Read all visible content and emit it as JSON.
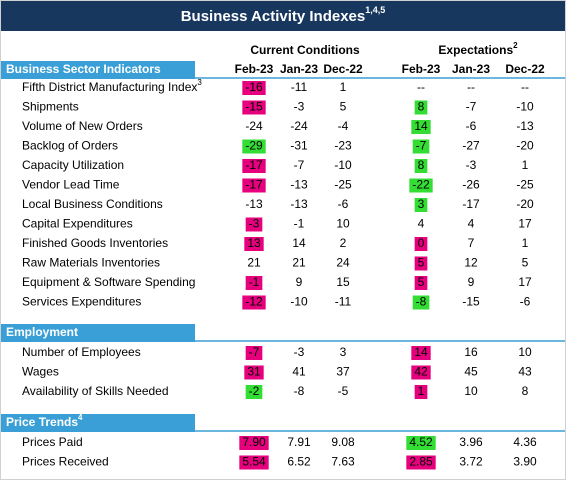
{
  "header": {
    "title": "Business Activity Indexes",
    "title_sup": "1,4,5"
  },
  "columns": {
    "current": "Current Conditions",
    "expectations": "Expectations",
    "expectations_sup": "2",
    "months": [
      "Feb-23",
      "Jan-23",
      "Dec-22"
    ]
  },
  "sections": [
    {
      "title": "Business Sector Indicators",
      "rows": [
        {
          "label": "Fifth District Manufacturing Index",
          "label_sup": "3",
          "current": [
            "-16",
            "-11",
            "1"
          ],
          "current_color": "#e6007e",
          "expectations": [
            "--",
            "--",
            "--"
          ],
          "expectations_color": null
        },
        {
          "label": "Shipments",
          "current": [
            "-15",
            "-3",
            "5"
          ],
          "current_color": "#e6007e",
          "expectations": [
            "8",
            "-7",
            "-10"
          ],
          "expectations_color": "#33dd33"
        },
        {
          "label": "Volume of New Orders",
          "current": [
            "-24",
            "-24",
            "-4"
          ],
          "current_color": null,
          "expectations": [
            "14",
            "-6",
            "-13"
          ],
          "expectations_color": "#33dd33"
        },
        {
          "label": "Backlog of Orders",
          "current": [
            "-29",
            "-31",
            "-23"
          ],
          "current_color": "#33dd33",
          "expectations": [
            "-7",
            "-27",
            "-20"
          ],
          "expectations_color": "#33dd33"
        },
        {
          "label": "Capacity Utilization",
          "current": [
            "-17",
            "-7",
            "-10"
          ],
          "current_color": "#e6007e",
          "expectations": [
            "8",
            "-3",
            "1"
          ],
          "expectations_color": "#33dd33"
        },
        {
          "label": "Vendor Lead Time",
          "current": [
            "-17",
            "-13",
            "-25"
          ],
          "current_color": "#e6007e",
          "expectations": [
            "-22",
            "-26",
            "-25"
          ],
          "expectations_color": "#33dd33"
        },
        {
          "label": "Local Business Conditions",
          "current": [
            "-13",
            "-13",
            "-6"
          ],
          "current_color": null,
          "expectations": [
            "3",
            "-17",
            "-20"
          ],
          "expectations_color": "#33dd33"
        },
        {
          "label": "Capital Expenditures",
          "current": [
            "-3",
            "-1",
            "10"
          ],
          "current_color": "#e6007e",
          "expectations": [
            "4",
            "4",
            "17"
          ],
          "expectations_color": null
        },
        {
          "label": "Finished Goods Inventories",
          "current": [
            "13",
            "14",
            "2"
          ],
          "current_color": "#e6007e",
          "expectations": [
            "0",
            "7",
            "1"
          ],
          "expectations_color": "#e6007e"
        },
        {
          "label": "Raw Materials Inventories",
          "current": [
            "21",
            "21",
            "24"
          ],
          "current_color": null,
          "expectations": [
            "5",
            "12",
            "5"
          ],
          "expectations_color": "#e6007e"
        },
        {
          "label": "Equipment & Software Spending",
          "current": [
            "-1",
            "9",
            "15"
          ],
          "current_color": "#e6007e",
          "expectations": [
            "5",
            "9",
            "17"
          ],
          "expectations_color": "#e6007e"
        },
        {
          "label": "Services Expenditures",
          "current": [
            "-12",
            "-10",
            "-11"
          ],
          "current_color": "#e6007e",
          "expectations": [
            "-8",
            "-15",
            "-6"
          ],
          "expectations_color": "#33dd33"
        }
      ]
    },
    {
      "title": "Employment",
      "rows": [
        {
          "label": "Number of Employees",
          "current": [
            "-7",
            "-3",
            "3"
          ],
          "current_color": "#e6007e",
          "expectations": [
            "14",
            "16",
            "10"
          ],
          "expectations_color": "#e6007e"
        },
        {
          "label": "Wages",
          "current": [
            "31",
            "41",
            "37"
          ],
          "current_color": "#e6007e",
          "expectations": [
            "42",
            "45",
            "43"
          ],
          "expectations_color": "#e6007e"
        },
        {
          "label": "Availability of Skills Needed",
          "current": [
            "-2",
            "-8",
            "-5"
          ],
          "current_color": "#33dd33",
          "expectations": [
            "1",
            "10",
            "8"
          ],
          "expectations_color": "#e6007e"
        }
      ]
    },
    {
      "title": "Price Trends",
      "title_sup": "4",
      "rows": [
        {
          "label": "Prices Paid",
          "current": [
            "7.90",
            "7.91",
            "9.08"
          ],
          "current_color": "#e6007e",
          "expectations": [
            "4.52",
            "3.96",
            "4.36"
          ],
          "expectations_color": "#33dd33"
        },
        {
          "label": "Prices Received",
          "current": [
            "5.54",
            "6.52",
            "7.63"
          ],
          "current_color": "#e6007e",
          "expectations": [
            "2.85",
            "3.72",
            "3.90"
          ],
          "expectations_color": "#e6007e"
        }
      ]
    }
  ]
}
